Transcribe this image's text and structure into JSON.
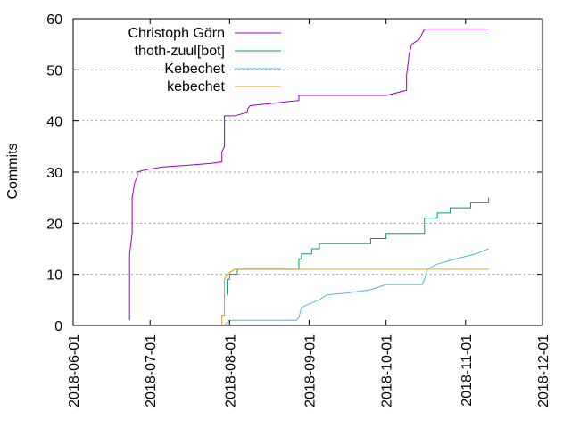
{
  "chart_data": {
    "type": "line",
    "title": "",
    "xlabel": "",
    "ylabel": "Commits",
    "x_type": "date",
    "xlim": [
      "2018-06-01",
      "2018-12-01"
    ],
    "ylim": [
      0,
      60
    ],
    "x_ticks": [
      "2018-06-01",
      "2018-07-01",
      "2018-08-01",
      "2018-09-01",
      "2018-10-01",
      "2018-11-01",
      "2018-12-01"
    ],
    "y_ticks": [
      0,
      10,
      20,
      30,
      40,
      50,
      60
    ],
    "grid": "horizontal",
    "legend_position": "top-left",
    "series": [
      {
        "name": "Christoph Görn",
        "color": "#9400d3",
        "points": [
          [
            "2018-06-23",
            1
          ],
          [
            "2018-06-23",
            14
          ],
          [
            "2018-06-24",
            18
          ],
          [
            "2018-06-24",
            25
          ],
          [
            "2018-06-25",
            28
          ],
          [
            "2018-06-26",
            29
          ],
          [
            "2018-06-26",
            30
          ],
          [
            "2018-06-28",
            30.3
          ],
          [
            "2018-07-01",
            30.6
          ],
          [
            "2018-07-06",
            31
          ],
          [
            "2018-07-15",
            31.3
          ],
          [
            "2018-07-25",
            31.7
          ],
          [
            "2018-07-29",
            32
          ],
          [
            "2018-07-29",
            34
          ],
          [
            "2018-07-30",
            35
          ],
          [
            "2018-07-30",
            41
          ],
          [
            "2018-08-03",
            41
          ],
          [
            "2018-08-08",
            41.7
          ],
          [
            "2018-08-08",
            42.3
          ],
          [
            "2018-08-09",
            43
          ],
          [
            "2018-08-15",
            43.3
          ],
          [
            "2018-08-24",
            43.8
          ],
          [
            "2018-08-28",
            44
          ],
          [
            "2018-08-28",
            45
          ],
          [
            "2018-09-20",
            45
          ],
          [
            "2018-10-01",
            45
          ],
          [
            "2018-10-05",
            45.5
          ],
          [
            "2018-10-09",
            46
          ],
          [
            "2018-10-09",
            49
          ],
          [
            "2018-10-10",
            53
          ],
          [
            "2018-10-11",
            55
          ],
          [
            "2018-10-14",
            56
          ],
          [
            "2018-10-15",
            57
          ],
          [
            "2018-10-16",
            58
          ],
          [
            "2018-11-10",
            58
          ]
        ]
      },
      {
        "name": "thoth-zuul[bot]",
        "color": "#009e73",
        "points": [
          [
            "2018-07-31",
            6
          ],
          [
            "2018-07-31",
            9
          ],
          [
            "2018-08-01",
            9
          ],
          [
            "2018-08-01",
            10
          ],
          [
            "2018-08-04",
            10
          ],
          [
            "2018-08-04",
            11
          ],
          [
            "2018-08-28",
            11
          ],
          [
            "2018-08-28",
            13
          ],
          [
            "2018-08-29",
            13
          ],
          [
            "2018-08-29",
            14
          ],
          [
            "2018-09-02",
            14
          ],
          [
            "2018-09-02",
            15
          ],
          [
            "2018-09-05",
            15
          ],
          [
            "2018-09-05",
            16
          ],
          [
            "2018-09-25",
            16
          ],
          [
            "2018-09-25",
            17
          ],
          [
            "2018-10-01",
            17
          ],
          [
            "2018-10-01",
            18
          ],
          [
            "2018-10-16",
            18
          ],
          [
            "2018-10-16",
            21
          ],
          [
            "2018-10-21",
            21
          ],
          [
            "2018-10-21",
            22
          ],
          [
            "2018-10-26",
            22
          ],
          [
            "2018-10-26",
            23
          ],
          [
            "2018-11-03",
            23
          ],
          [
            "2018-11-03",
            24
          ],
          [
            "2018-11-10",
            24
          ],
          [
            "2018-11-10",
            25
          ]
        ]
      },
      {
        "name": "Kebechet",
        "color": "#56b4e9",
        "points": [
          [
            "2018-07-30",
            0
          ],
          [
            "2018-07-31",
            0.5
          ],
          [
            "2018-08-01",
            1
          ],
          [
            "2018-08-27",
            1
          ],
          [
            "2018-08-28",
            1.5
          ],
          [
            "2018-08-29",
            3.5
          ],
          [
            "2018-08-31",
            4
          ],
          [
            "2018-09-05",
            5
          ],
          [
            "2018-09-08",
            6
          ],
          [
            "2018-09-15",
            6.3
          ],
          [
            "2018-09-25",
            7
          ],
          [
            "2018-10-01",
            8
          ],
          [
            "2018-10-15",
            8
          ],
          [
            "2018-10-16",
            9
          ],
          [
            "2018-10-17",
            11
          ],
          [
            "2018-10-21",
            12
          ],
          [
            "2018-10-28",
            13
          ],
          [
            "2018-11-05",
            14
          ],
          [
            "2018-11-10",
            15
          ]
        ]
      },
      {
        "name": "kebechet",
        "color": "#e69f00",
        "points": [
          [
            "2018-07-29",
            0
          ],
          [
            "2018-07-29",
            2
          ],
          [
            "2018-07-30",
            2
          ],
          [
            "2018-07-30",
            9
          ],
          [
            "2018-07-31",
            10
          ],
          [
            "2018-08-03",
            11
          ],
          [
            "2018-11-10",
            11
          ]
        ]
      }
    ]
  }
}
